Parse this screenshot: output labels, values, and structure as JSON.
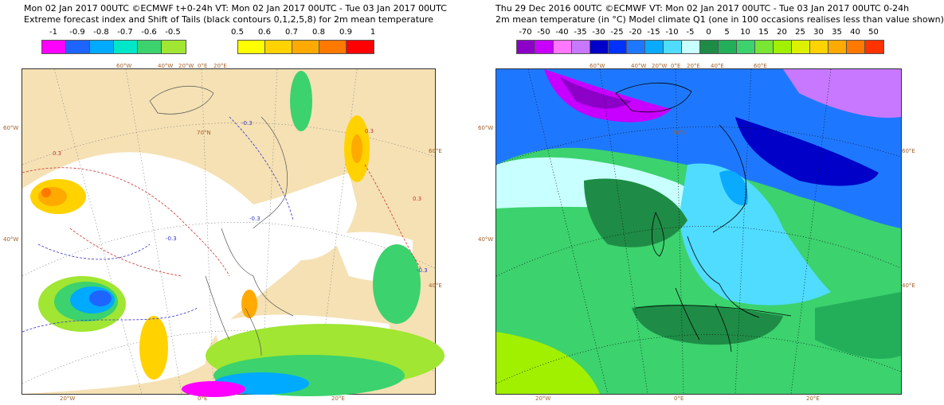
{
  "left": {
    "header_line1": "Mon 02 Jan 2017 00UTC ©ECMWF t+0-24h  VT: Mon 02 Jan 2017 00UTC - Tue 03 Jan 2017 00UTC",
    "header_line2": "Extreme forecast index and Shift of Tails (black contours 0,1,2,5,8) for 2m mean temperature",
    "neg_scale": {
      "labels": [
        "-1",
        "-0.9",
        "-0.8",
        "-0.7",
        "-0.6",
        "-0.5"
      ],
      "colors": [
        "#ff00ff",
        "#1e64ff",
        "#00aaff",
        "#00e6c8",
        "#3cd26e",
        "#a0e632"
      ]
    },
    "pos_scale": {
      "labels": [
        "0.5",
        "0.6",
        "0.7",
        "0.8",
        "0.9",
        "1"
      ],
      "colors": [
        "#ffff00",
        "#ffd200",
        "#ffaa00",
        "#ff7800",
        "#ff0000"
      ]
    },
    "lon_labels": [
      "60°W",
      "40°W",
      "20°W",
      "0°E",
      "20°E",
      "20°W",
      "0°E",
      "20°E"
    ],
    "lat_labels": [
      "60°W",
      "40°W",
      "60°E",
      "40°E",
      "70°N"
    ],
    "contour_labels": [
      "0.3",
      "-0.3"
    ]
  },
  "right": {
    "header_line1": "Thu 29 Dec 2016 00UTC ©ECMWF VT: Mon 02 Jan 2017 00UTC - Tue 03 Jan 2017 00UTC   0-24h",
    "header_line2": "2m mean temperature (in °C)  Model climate Q1 (one in 100 occasions realises less than value shown)",
    "scale": {
      "labels": [
        "-70",
        "-50",
        "-40",
        "-35",
        "-30",
        "-25",
        "-20",
        "-15",
        "-10",
        "-5",
        "0",
        "5",
        "10",
        "15",
        "20",
        "25",
        "30",
        "35",
        "40",
        "50"
      ],
      "colors": [
        "#8c00c8",
        "#c800ff",
        "#ff78ff",
        "#c878ff",
        "#0000c8",
        "#0032ff",
        "#1e78ff",
        "#0aaaff",
        "#50dcff",
        "#c8ffff",
        "#1e8c46",
        "#23af5a",
        "#3cd26e",
        "#78e632",
        "#a0f000",
        "#dcf000",
        "#ffd200",
        "#ffaa00",
        "#ff7800",
        "#ff3200"
      ]
    },
    "lon_labels": [
      "60°W",
      "40°W",
      "20°W",
      "0°E",
      "20°E",
      "40°E",
      "60°E",
      "20°W",
      "0°E",
      "20°E"
    ],
    "lat_labels": [
      "60°W",
      "40°W",
      "60°E",
      "40°E",
      "70°N"
    ]
  }
}
